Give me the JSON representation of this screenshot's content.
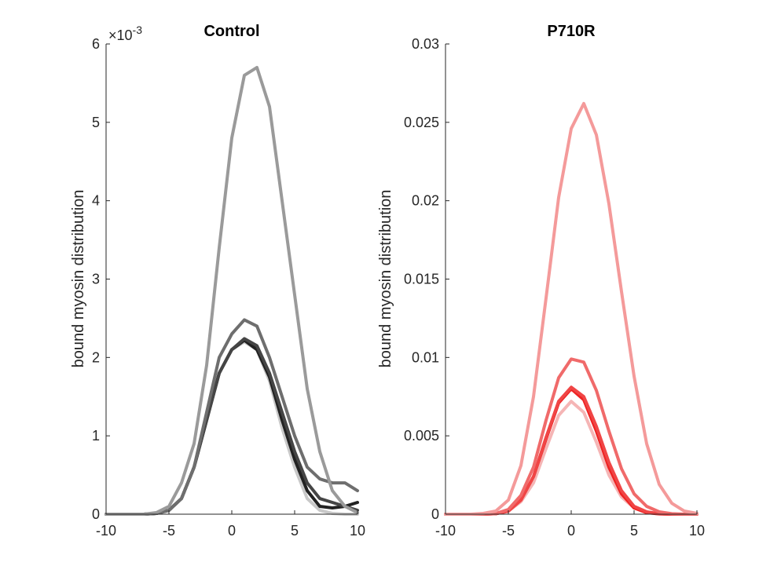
{
  "chart_data": [
    {
      "type": "line",
      "title": "Control",
      "xlabel": "",
      "ylabel": "bound myosin distribution",
      "xlim": [
        -10,
        10
      ],
      "ylim": [
        0,
        0.006
      ],
      "x_ticks": [
        -10,
        -5,
        0,
        5,
        10
      ],
      "x_tick_labels": [
        "-10",
        "-5",
        "0",
        "5",
        "10"
      ],
      "y_ticks": [
        0,
        0.001,
        0.002,
        0.003,
        0.004,
        0.005,
        0.006
      ],
      "y_tick_labels": [
        "0",
        "1",
        "2",
        "3",
        "4",
        "5",
        "6"
      ],
      "exponent_label": {
        "base": "×10",
        "power": "-3"
      },
      "grid": false,
      "x": [
        -10,
        -9,
        -8,
        -7,
        -6,
        -5,
        -4,
        -3,
        -2,
        -1,
        0,
        1,
        2,
        3,
        4,
        5,
        6,
        7,
        8,
        9,
        10
      ],
      "series": [
        {
          "color": "#c8c8c8",
          "values": [
            0,
            0,
            0,
            0,
            1e-05,
            5e-05,
            0.0002,
            0.0006,
            0.0012,
            0.0018,
            0.0021,
            0.0022,
            0.0021,
            0.0017,
            0.0011,
            0.0006,
            0.0002,
            5e-05,
            1e-05,
            0,
            0
          ]
        },
        {
          "color": "#222222",
          "values": [
            0,
            0,
            0,
            0,
            1e-05,
            5e-05,
            0.0002,
            0.0006,
            0.0012,
            0.0018,
            0.0021,
            0.00222,
            0.0021,
            0.00175,
            0.0012,
            0.0007,
            0.0003,
            0.0001,
            8e-05,
            0.0001,
            0.00015
          ]
        },
        {
          "color": "#454545",
          "values": [
            0,
            0,
            0,
            0,
            1e-05,
            5e-05,
            0.0002,
            0.0006,
            0.0012,
            0.0018,
            0.0021,
            0.00224,
            0.00215,
            0.0018,
            0.0013,
            0.0008,
            0.0004,
            0.0002,
            0.00015,
            0.0001,
            5e-05
          ]
        },
        {
          "color": "#6e6e6e",
          "values": [
            0,
            0,
            0,
            0,
            1e-05,
            5e-05,
            0.0002,
            0.0006,
            0.0013,
            0.002,
            0.0023,
            0.00248,
            0.0024,
            0.002,
            0.0015,
            0.001,
            0.0006,
            0.00045,
            0.0004,
            0.0004,
            0.0003
          ]
        },
        {
          "color": "#9a9a9a",
          "values": [
            0,
            0,
            0,
            0,
            2e-05,
            0.0001,
            0.0004,
            0.0009,
            0.0019,
            0.0034,
            0.0048,
            0.0056,
            0.0057,
            0.0052,
            0.004,
            0.0028,
            0.0016,
            0.0008,
            0.0003,
            0.0001,
            2e-05
          ]
        }
      ]
    },
    {
      "type": "line",
      "title": "P710R",
      "xlabel": "",
      "ylabel": "bound myosin distribution",
      "xlim": [
        -10,
        10
      ],
      "ylim": [
        0,
        0.03
      ],
      "x_ticks": [
        -10,
        -5,
        0,
        5,
        10
      ],
      "x_tick_labels": [
        "-10",
        "-5",
        "0",
        "5",
        "10"
      ],
      "y_ticks": [
        0,
        0.005,
        0.01,
        0.015,
        0.02,
        0.025,
        0.03
      ],
      "y_tick_labels": [
        "0",
        "0.005",
        "0.01",
        "0.015",
        "0.02",
        "0.025",
        "0.03"
      ],
      "grid": false,
      "x": [
        -10,
        -9,
        -8,
        -7,
        -6,
        -5,
        -4,
        -3,
        -2,
        -1,
        0,
        1,
        2,
        3,
        4,
        5,
        6,
        7,
        8,
        9,
        10
      ],
      "series": [
        {
          "color": "#f5b5b5",
          "values": [
            0,
            0,
            0,
            0,
            3e-05,
            0.0002,
            0.0008,
            0.002,
            0.0042,
            0.0063,
            0.0072,
            0.0065,
            0.0046,
            0.0025,
            0.0011,
            0.0004,
            0.0001,
            2e-05,
            0,
            0,
            0
          ]
        },
        {
          "color": "#ee2222",
          "values": [
            0,
            0,
            0,
            0,
            3e-05,
            0.0002,
            0.0009,
            0.0024,
            0.0048,
            0.0071,
            0.008,
            0.0073,
            0.0053,
            0.003,
            0.0013,
            0.0004,
            0.0001,
            2e-05,
            0,
            0,
            0
          ]
        },
        {
          "color": "#f04545",
          "values": [
            0,
            0,
            0,
            0,
            3e-05,
            0.0002,
            0.0009,
            0.0024,
            0.0049,
            0.0072,
            0.0081,
            0.0075,
            0.0056,
            0.0033,
            0.0015,
            0.0005,
            0.00015,
            3e-05,
            0,
            0,
            0
          ]
        },
        {
          "color": "#f06a6a",
          "values": [
            0,
            0,
            0,
            0,
            4e-05,
            0.0003,
            0.0012,
            0.003,
            0.006,
            0.0087,
            0.0099,
            0.0097,
            0.0079,
            0.0053,
            0.0029,
            0.0013,
            0.0005,
            0.00015,
            3e-05,
            0,
            0
          ]
        },
        {
          "color": "#f49a9a",
          "values": [
            0,
            0,
            0,
            5e-05,
            0.0002,
            0.0009,
            0.0031,
            0.0075,
            0.0138,
            0.0202,
            0.0246,
            0.0262,
            0.0242,
            0.0198,
            0.0142,
            0.0088,
            0.0045,
            0.0019,
            0.0007,
            0.0002,
            5e-05
          ]
        }
      ]
    }
  ]
}
